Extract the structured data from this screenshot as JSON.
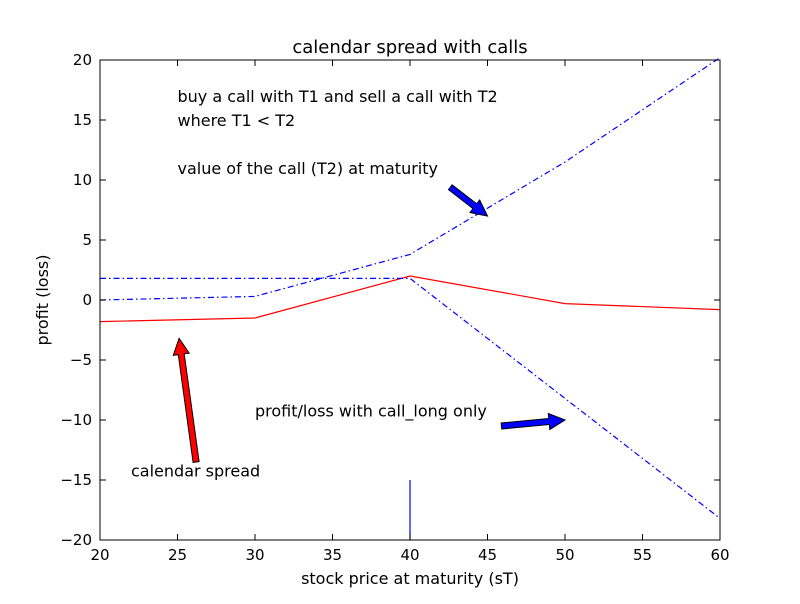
{
  "chart_data": {
    "type": "line",
    "title": "calendar spread with calls",
    "xlabel": "stock price at maturity (sT)",
    "ylabel": "profit (loss)",
    "xlim": [
      20,
      60
    ],
    "ylim": [
      -20,
      20
    ],
    "x_ticks": [
      20,
      25,
      30,
      35,
      40,
      45,
      50,
      55,
      60
    ],
    "y_ticks": [
      20,
      15,
      10,
      5,
      0,
      -5,
      -10,
      -15,
      -20
    ],
    "x_tick_labels": [
      "20",
      "25",
      "30",
      "35",
      "40",
      "45",
      "50",
      "55",
      "60"
    ],
    "y_tick_labels": [
      "20",
      "15",
      "10",
      "5",
      "0",
      "−5",
      "−10",
      "−15",
      "−20"
    ],
    "grid": false,
    "series": [
      {
        "style": "solid",
        "color": "#ff0000",
        "x": [
          20,
          30,
          40,
          50,
          60
        ],
        "y": [
          -1.8,
          -1.5,
          2.0,
          -0.3,
          -0.8
        ]
      },
      {
        "style": "dashdot",
        "color": "#0000ff",
        "x": [
          20,
          30,
          40,
          50,
          60
        ],
        "y": [
          0.0,
          0.3,
          3.8,
          11.5,
          20.2
        ]
      },
      {
        "style": "dashdot",
        "color": "#0000ff",
        "x": [
          20,
          40,
          60
        ],
        "y": [
          1.8,
          1.8,
          -18.2
        ]
      },
      {
        "style": "solid",
        "color": "#0000ff",
        "x": [
          40,
          40
        ],
        "y": [
          -20,
          -15
        ]
      }
    ],
    "annotations": [
      {
        "text": "buy a call with T1 and sell a call with T2",
        "x": 25.0,
        "y": 16.5
      },
      {
        "text": "where T1 < T2",
        "x": 25.0,
        "y": 14.5
      },
      {
        "text": "value of the call (T2) at maturity",
        "x": 25.0,
        "y": 10.5,
        "arrow": {
          "from": [
            42.6,
            9.4
          ],
          "to": [
            45.0,
            7.0
          ],
          "color": "#0000ff"
        }
      },
      {
        "text": "profit/loss with call_long only",
        "x": 30.0,
        "y": -9.7,
        "arrow": {
          "from": [
            45.9,
            -10.5
          ],
          "to": [
            50.0,
            -10.0
          ],
          "color": "#0000ff"
        }
      },
      {
        "text": "calendar spread",
        "x": 22.0,
        "y": -14.7,
        "arrow": {
          "from": [
            26.2,
            -13.5
          ],
          "to": [
            25.1,
            -3.2
          ],
          "color": "#ff0000"
        }
      }
    ]
  }
}
